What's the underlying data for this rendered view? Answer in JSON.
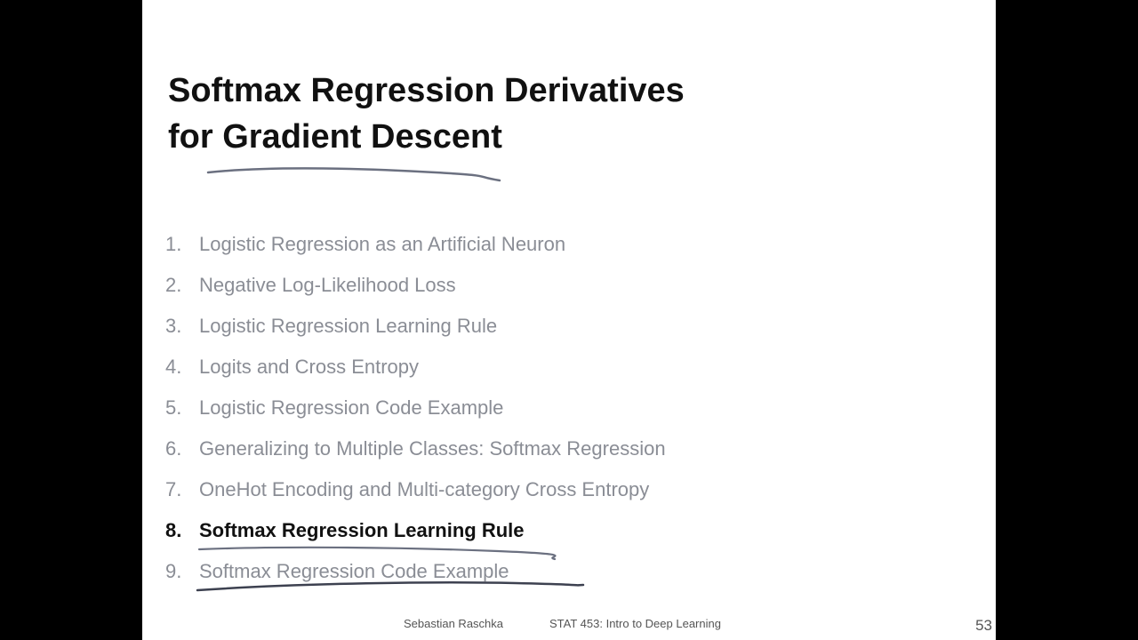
{
  "slide": {
    "title_lines": [
      "Softmax Regression Derivatives",
      "for Gradient Descent"
    ],
    "outline": [
      {
        "number": "1.",
        "text": "Logistic Regression as an Artificial Neuron",
        "active": false
      },
      {
        "number": "2.",
        "text": "Negative Log-Likelihood Loss",
        "active": false
      },
      {
        "number": "3.",
        "text": "Logistic Regression Learning Rule",
        "active": false
      },
      {
        "number": "4.",
        "text": "Logits and Cross Entropy",
        "active": false
      },
      {
        "number": "5.",
        "text": "Logistic Regression Code Example",
        "active": false
      },
      {
        "number": "6.",
        "text": "Generalizing to Multiple Classes: Softmax Regression",
        "active": false
      },
      {
        "number": "7.",
        "text": "OneHot Encoding and Multi-category Cross Entropy",
        "active": false
      },
      {
        "number": "8.",
        "text": "Softmax Regression Learning Rule",
        "active": true
      },
      {
        "number": "9.",
        "text": "Softmax Regression Code Example",
        "active": false
      }
    ],
    "footer": {
      "author": "Sebastian Raschka",
      "course": "STAT 453: Intro to Deep Learning",
      "page_number": "53"
    }
  },
  "colors": {
    "letterbox": "#000000",
    "slide_background": "#ffffff",
    "title_text": "#111111",
    "inactive_item": "#8a8d95",
    "active_item": "#111111",
    "pen_annotation": "#6b7080"
  }
}
